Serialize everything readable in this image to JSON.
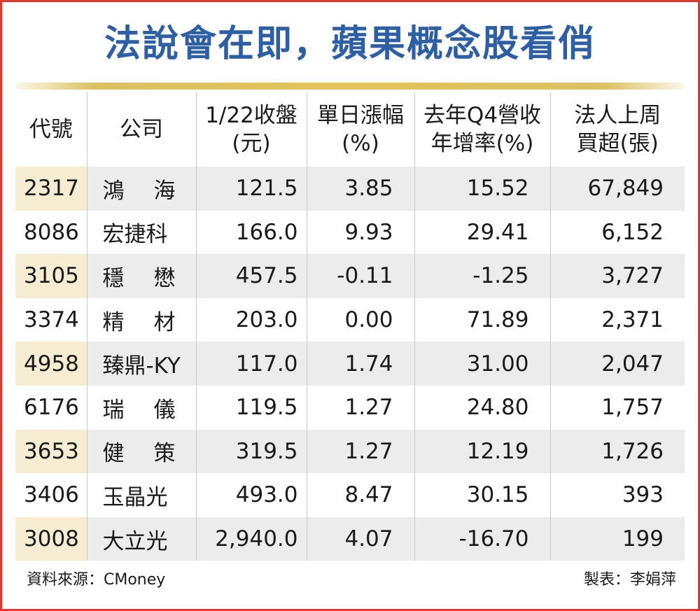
{
  "title": "法說會在即，蘋果概念股看俏",
  "headers": {
    "code": "代號",
    "company": "公司",
    "close_line1": "1/22收盤",
    "close_line2": "(元)",
    "change_line1": "單日漲幅",
    "change_line2": "(%)",
    "growth_line1": "去年Q4營收",
    "growth_line2": "年增率(%)",
    "buy_line1": "法人上周",
    "buy_line2": "買超(張)"
  },
  "rows": [
    {
      "code": "2317",
      "company": "鴻海",
      "close": "121.5",
      "change": "3.85",
      "growth": "15.52",
      "buy": "67,849"
    },
    {
      "code": "8086",
      "company": "宏捷科",
      "close": "166.0",
      "change": "9.93",
      "growth": "29.41",
      "buy": "6,152"
    },
    {
      "code": "3105",
      "company": "穩懋",
      "close": "457.5",
      "change": "-0.11",
      "growth": "-1.25",
      "buy": "3,727"
    },
    {
      "code": "3374",
      "company": "精材",
      "close": "203.0",
      "change": "0.00",
      "growth": "71.89",
      "buy": "2,371"
    },
    {
      "code": "4958",
      "company": "臻鼎-KY",
      "close": "117.0",
      "change": "1.74",
      "growth": "31.00",
      "buy": "2,047"
    },
    {
      "code": "6176",
      "company": "瑞儀",
      "close": "119.5",
      "change": "1.27",
      "growth": "24.80",
      "buy": "1,757"
    },
    {
      "code": "3653",
      "company": "健策",
      "close": "319.5",
      "change": "1.27",
      "growth": "12.19",
      "buy": "1,726"
    },
    {
      "code": "3406",
      "company": "玉晶光",
      "close": "493.0",
      "change": "8.47",
      "growth": "30.15",
      "buy": "393"
    },
    {
      "code": "3008",
      "company": "大立光",
      "close": "2,940.0",
      "change": "4.07",
      "growth": "-16.70",
      "buy": "199"
    }
  ],
  "source": "資料來源：CMoney",
  "credit": "製表：李娟萍",
  "colors": {
    "title": "#2d5fa6",
    "border": "#e0392e",
    "row_shade": "#ececec",
    "code_shade": "#f6ecd2",
    "rule": "#e2c25a"
  }
}
